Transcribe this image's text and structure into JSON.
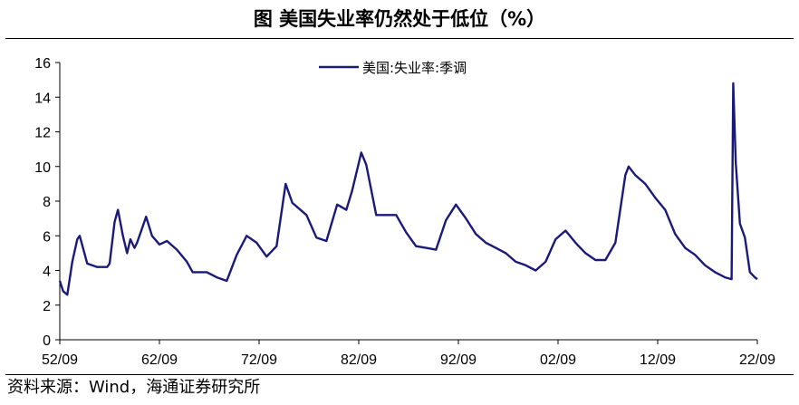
{
  "title": "图 美国失业率仍然处于低位（%）",
  "source": "资料来源：Wind，海通证券研究所",
  "chart_data": {
    "type": "line",
    "title": "图 美国失业率仍然处于低位（%）",
    "xlabel": "",
    "ylabel": "",
    "xticks": [
      "52/09",
      "62/09",
      "72/09",
      "82/09",
      "92/09",
      "02/09",
      "12/09",
      "22/09"
    ],
    "ylim": [
      0,
      16
    ],
    "yticks": [
      0,
      2,
      4,
      6,
      8,
      10,
      12,
      14,
      16
    ],
    "grid": false,
    "legend_position": "top-center",
    "color": "#1a1a7a",
    "series": [
      {
        "name": "美国:失业率:季调",
        "points": [
          [
            "1952-09",
            3.4
          ],
          [
            "1953-01",
            2.8
          ],
          [
            "1953-06",
            2.6
          ],
          [
            "1953-12",
            4.5
          ],
          [
            "1954-06",
            5.8
          ],
          [
            "1954-09",
            6.0
          ],
          [
            "1955-06",
            4.4
          ],
          [
            "1956-06",
            4.2
          ],
          [
            "1957-06",
            4.2
          ],
          [
            "1957-09",
            4.4
          ],
          [
            "1958-03",
            6.8
          ],
          [
            "1958-07",
            7.5
          ],
          [
            "1959-01",
            6.0
          ],
          [
            "1959-06",
            5.0
          ],
          [
            "1959-10",
            5.8
          ],
          [
            "1960-03",
            5.3
          ],
          [
            "1960-06",
            5.6
          ],
          [
            "1961-05",
            7.1
          ],
          [
            "1961-12",
            6.0
          ],
          [
            "1962-09",
            5.5
          ],
          [
            "1963-06",
            5.7
          ],
          [
            "1964-06",
            5.2
          ],
          [
            "1965-06",
            4.5
          ],
          [
            "1966-01",
            3.9
          ],
          [
            "1967-06",
            3.9
          ],
          [
            "1968-06",
            3.6
          ],
          [
            "1969-06",
            3.4
          ],
          [
            "1970-06",
            4.9
          ],
          [
            "1971-06",
            6.0
          ],
          [
            "1972-06",
            5.6
          ],
          [
            "1973-06",
            4.8
          ],
          [
            "1974-06",
            5.4
          ],
          [
            "1975-05",
            9.0
          ],
          [
            "1976-01",
            7.9
          ],
          [
            "1977-06",
            7.2
          ],
          [
            "1978-06",
            5.9
          ],
          [
            "1979-06",
            5.7
          ],
          [
            "1980-07",
            7.8
          ],
          [
            "1981-06",
            7.5
          ],
          [
            "1982-01",
            8.6
          ],
          [
            "1982-12",
            10.8
          ],
          [
            "1983-06",
            10.1
          ],
          [
            "1984-06",
            7.2
          ],
          [
            "1986-06",
            7.2
          ],
          [
            "1987-06",
            6.2
          ],
          [
            "1988-06",
            5.4
          ],
          [
            "1989-06",
            5.3
          ],
          [
            "1990-06",
            5.2
          ],
          [
            "1991-06",
            6.9
          ],
          [
            "1992-06",
            7.8
          ],
          [
            "1993-06",
            7.0
          ],
          [
            "1994-06",
            6.1
          ],
          [
            "1995-06",
            5.6
          ],
          [
            "1996-06",
            5.3
          ],
          [
            "1997-06",
            5.0
          ],
          [
            "1998-06",
            4.5
          ],
          [
            "1999-06",
            4.3
          ],
          [
            "2000-06",
            4.0
          ],
          [
            "2001-06",
            4.5
          ],
          [
            "2002-06",
            5.8
          ],
          [
            "2003-06",
            6.3
          ],
          [
            "2004-06",
            5.6
          ],
          [
            "2005-06",
            5.0
          ],
          [
            "2006-06",
            4.6
          ],
          [
            "2007-06",
            4.6
          ],
          [
            "2008-06",
            5.6
          ],
          [
            "2009-06",
            9.5
          ],
          [
            "2009-10",
            10.0
          ],
          [
            "2010-06",
            9.5
          ],
          [
            "2011-06",
            9.0
          ],
          [
            "2012-06",
            8.2
          ],
          [
            "2013-06",
            7.5
          ],
          [
            "2014-06",
            6.1
          ],
          [
            "2015-06",
            5.3
          ],
          [
            "2016-06",
            4.9
          ],
          [
            "2017-06",
            4.3
          ],
          [
            "2018-06",
            3.9
          ],
          [
            "2019-06",
            3.6
          ],
          [
            "2020-02",
            3.5
          ],
          [
            "2020-04",
            14.8
          ],
          [
            "2020-07",
            10.2
          ],
          [
            "2020-12",
            6.7
          ],
          [
            "2021-06",
            5.9
          ],
          [
            "2021-12",
            3.9
          ],
          [
            "2022-06",
            3.6
          ],
          [
            "2022-09",
            3.5
          ]
        ]
      }
    ]
  }
}
